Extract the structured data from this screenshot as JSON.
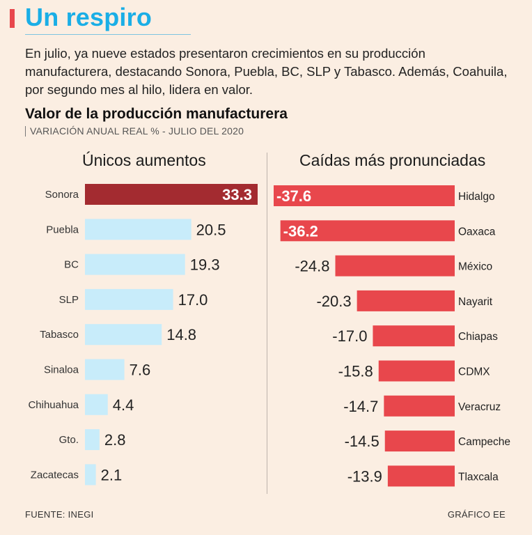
{
  "header": {
    "title": "Un respiro",
    "deck": "En julio, ya nueve estados presentaron crecimientos en su producción manufacturera, destacando Sonora, Puebla, BC, SLP y Tabasco. Además, Coahuila, por segundo mes al hilo, lidera en valor."
  },
  "colors": {
    "accent": "#e8474c",
    "title": "#1aaee6",
    "positive": "#c8ecfa",
    "positive_highlight": "#a32b30",
    "negative": "#e8474c"
  },
  "chart_data": {
    "type": "bar",
    "title": "Valor de la producción manufacturera",
    "subtitle": "VARIACIÓN ANUAL REAL % - JULIO DEL 2020",
    "panels": [
      {
        "heading": "Únicos aumentos",
        "categories": [
          "Sonora",
          "Puebla",
          "BC",
          "SLP",
          "Tabasco",
          "Sinaloa",
          "Chihuahua",
          "Gto.",
          "Zacatecas"
        ],
        "values": [
          33.3,
          20.5,
          19.3,
          17.0,
          14.8,
          7.6,
          4.4,
          2.8,
          2.1
        ],
        "labels": [
          "33.3",
          "20.5",
          "19.3",
          "17.0",
          "14.8",
          "7.6",
          "4.4",
          "2.8",
          "2.1"
        ],
        "xlim": [
          0,
          33.3
        ]
      },
      {
        "heading": "Caídas más pronunciadas",
        "categories": [
          "Hidalgo",
          "Oaxaca",
          "México",
          "Nayarit",
          "Chiapas",
          "CDMX",
          "Veracruz",
          "Campeche",
          "Tlaxcala"
        ],
        "values": [
          -37.6,
          -36.2,
          -24.8,
          -20.3,
          -17.0,
          -15.8,
          -14.7,
          -14.5,
          -13.9
        ],
        "labels": [
          "-37.6",
          "-36.2",
          "-24.8",
          "-20.3",
          "-17.0",
          "-15.8",
          "-14.7",
          "-14.5",
          "-13.9"
        ],
        "xlim": [
          -37.6,
          0
        ]
      }
    ]
  },
  "footer": {
    "source": "FUENTE: INEGI",
    "credit": "GRÁFICO EE"
  }
}
